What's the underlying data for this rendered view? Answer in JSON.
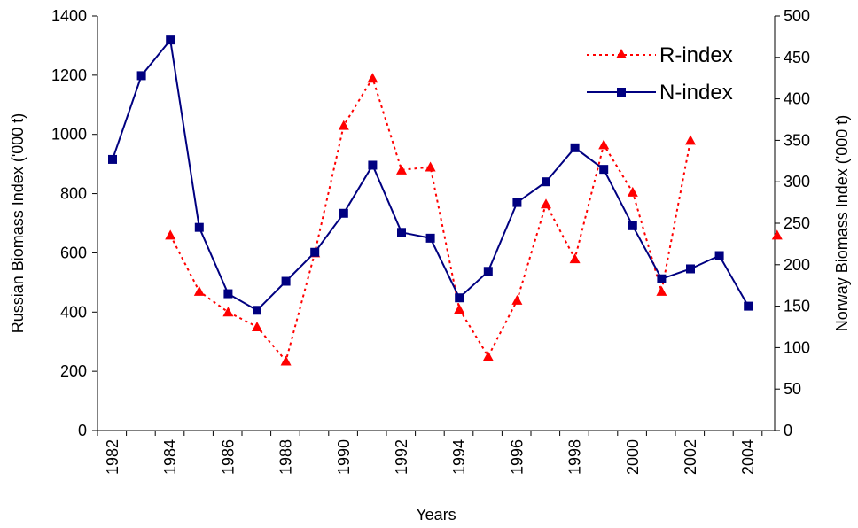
{
  "chart_data": {
    "type": "line",
    "x": [
      1982,
      1983,
      1984,
      1985,
      1986,
      1987,
      1988,
      1989,
      1990,
      1991,
      1992,
      1993,
      1994,
      1995,
      1996,
      1997,
      1998,
      1999,
      2000,
      2001,
      2002,
      2003,
      2004,
      2005
    ],
    "xlabel": "Years",
    "ylabel": "Russian Biomass Index ('000 t)",
    "ylabel_right": "Norway Biomass Index ('000 t)",
    "ylim": [
      0,
      1400
    ],
    "ylim_right": [
      0,
      500
    ],
    "yticks": [
      0,
      200,
      400,
      600,
      800,
      1000,
      1200,
      1400
    ],
    "yticks_right": [
      0,
      50,
      100,
      150,
      200,
      250,
      300,
      350,
      400,
      450,
      500
    ],
    "xtick_labels": [
      "1982",
      "1984",
      "1986",
      "1988",
      "1990",
      "1992",
      "1994",
      "1996",
      "1998",
      "2000",
      "2002",
      "2004"
    ],
    "grid": false,
    "legend_position": "top-right",
    "series": [
      {
        "name": "R-index",
        "axis": "left",
        "style": "dotted",
        "marker": "triangle",
        "color": "#ff0000",
        "marker_color": "#ff0000",
        "values": [
          null,
          null,
          660,
          470,
          400,
          350,
          235,
          600,
          1030,
          1190,
          880,
          890,
          410,
          250,
          440,
          765,
          580,
          965,
          805,
          470,
          980,
          null,
          null,
          660
        ]
      },
      {
        "name": "N-index",
        "axis": "right",
        "style": "solid",
        "marker": "square",
        "color": "#000080",
        "marker_color": "#000080",
        "values": [
          327,
          428,
          471,
          245,
          165,
          145,
          180,
          215,
          262,
          320,
          239,
          232,
          160,
          192,
          275,
          300,
          341,
          315,
          247,
          183,
          195,
          211,
          150,
          null
        ]
      }
    ]
  }
}
